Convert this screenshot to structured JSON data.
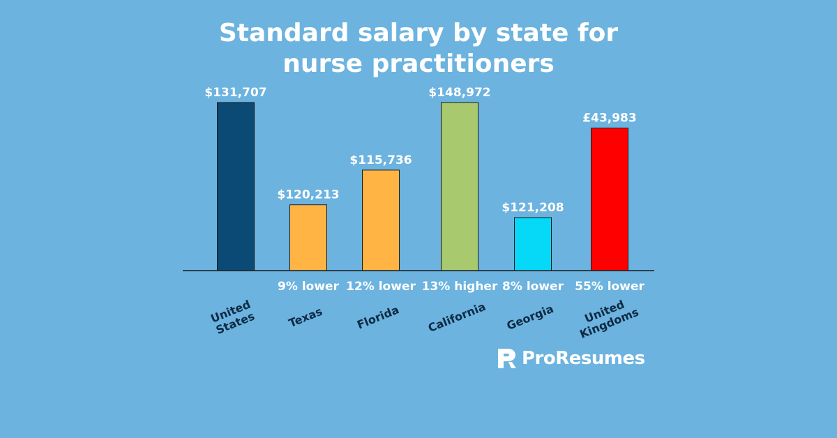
{
  "chart_data": {
    "type": "bar",
    "title_lines": [
      "Standard salary by state for",
      "nurse practitioners"
    ],
    "categories": [
      "United States",
      "Texas",
      "Florida",
      "California",
      "Georgia",
      "United Kingdoms"
    ],
    "category_label_lines": [
      [
        "United",
        "States"
      ],
      [
        "Texas"
      ],
      [
        "Florida"
      ],
      [
        "California"
      ],
      [
        "Georgia"
      ],
      [
        "United",
        "Kingdoms"
      ]
    ],
    "values": [
      131707,
      120213,
      115736,
      148972,
      121208,
      43983
    ],
    "bar_heights_relative": [
      0.92,
      0.36,
      0.55,
      0.92,
      0.29,
      0.78
    ],
    "value_labels": [
      "$131,707",
      "$120,213",
      "$115,736",
      "$148,972",
      "$121,208",
      "£43,983"
    ],
    "comparison_labels": [
      "",
      "9% lower",
      "12% lower",
      "13% higher",
      "8% lower",
      "55% lower"
    ],
    "colors": [
      "#0b4a74",
      "#ffb444",
      "#ffb444",
      "#a8c96e",
      "#06d8f8",
      "#ff0000"
    ],
    "xlabel": "",
    "ylabel": "",
    "grid": false,
    "legend": "none"
  },
  "brand": {
    "name": "ProResumes",
    "icon": "proresumes-logo-icon"
  },
  "colors": {
    "background": "#6cb3df",
    "text": "#ffffff",
    "category_text": "#0e2a44",
    "axis": "#1a1a1a"
  }
}
